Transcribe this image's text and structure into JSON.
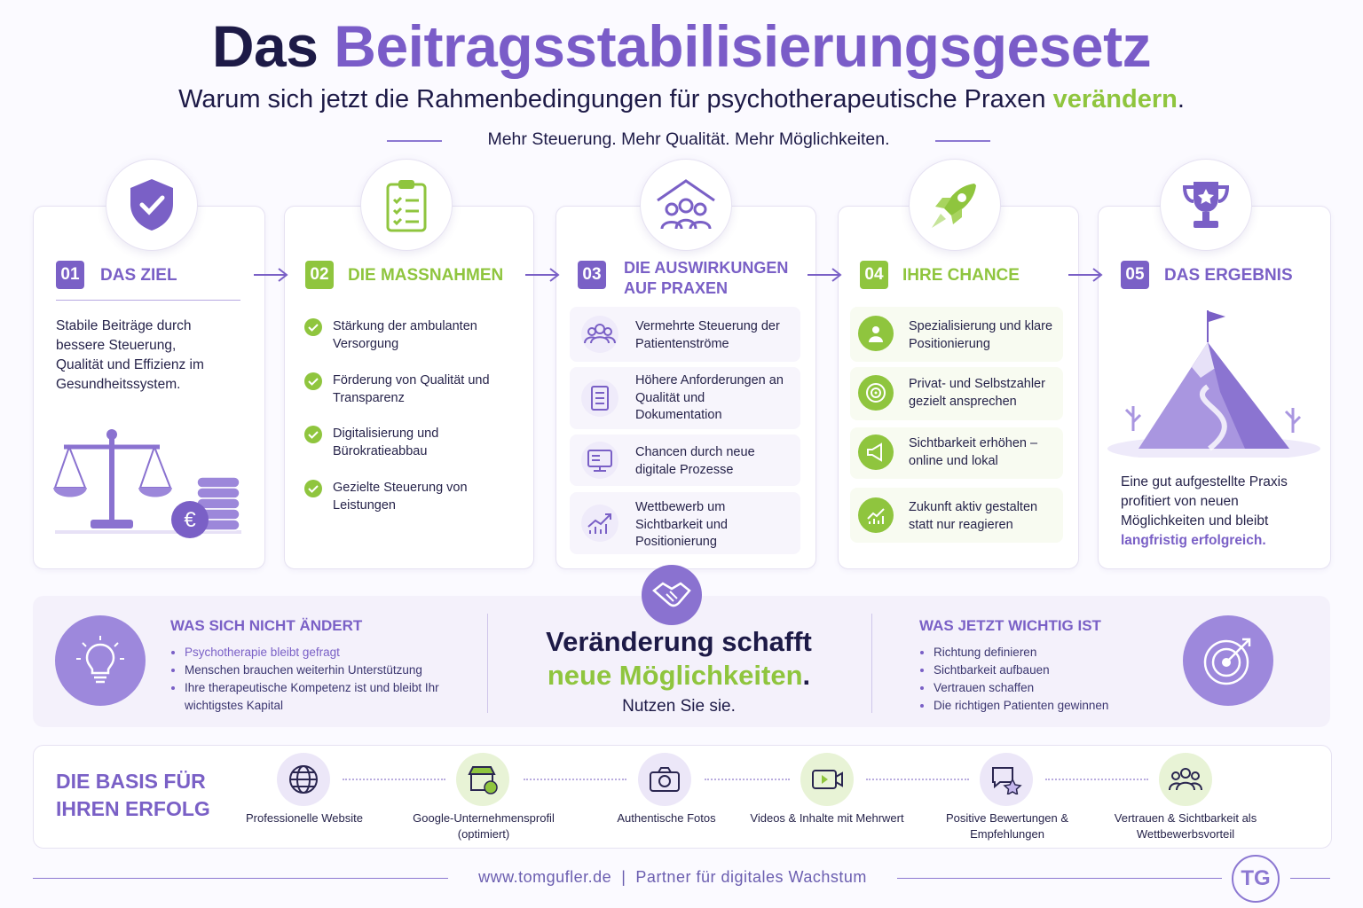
{
  "header": {
    "title_dark": "Das",
    "title_accent": "Beitragsstabilisierungsgesetz",
    "subtitle": "Warum sich jetzt die Rahmenbedingungen für psychotherapeutische Praxen",
    "subtitle_highlight": "verändern",
    "subtitle_end": ".",
    "tagline": "Mehr Steuerung. Mehr Qualität. Mehr Möglichkeiten."
  },
  "steps": [
    {
      "number": "01",
      "title": "DAS ZIEL",
      "text": "Stabile Beiträge durch bessere Steuerung, Qualität und Effizienz im Gesundheitssystem."
    },
    {
      "number": "02",
      "title": "DIE MASSNAHMEN",
      "items": [
        "Stärkung der ambulanten Versorgung",
        "Förderung von Qualität und Transparenz",
        "Digitalisierung und Bürokratieabbau",
        "Gezielte Steuerung von Leistungen"
      ]
    },
    {
      "number": "03",
      "title": "DIE AUSWIRKUNGEN AUF PRAXEN",
      "items": [
        "Vermehrte Steuerung der Patientenströme",
        "Höhere Anforderungen an Qualität und Dokumentation",
        "Chancen durch neue digitale Prozesse",
        "Wettbewerb um Sichtbarkeit und Positionierung"
      ]
    },
    {
      "number": "04",
      "title": "IHRE CHANCE",
      "items": [
        "Spezialisierung und klare Positionierung",
        "Privat- und Selbstzahler gezielt ansprechen",
        "Sichtbarkeit erhöhen – online und lokal",
        "Zukunft aktiv gestalten statt nur reagieren"
      ]
    },
    {
      "number": "05",
      "title": "DAS ERGEBNIS",
      "text": "Eine gut aufgestellte Praxis profitiert von neuen Möglichkeiten und bleibt",
      "highlight": "langfristig erfolgreich."
    }
  ],
  "middle": {
    "left": {
      "title": "WAS SICH NICHT ÄNDERT",
      "items": [
        "Psychotherapie bleibt gefragt",
        "Menschen brauchen weiterhin Unterstützung",
        "Ihre therapeutische Kompetenz ist und bleibt Ihr wichtigstes Kapital"
      ]
    },
    "center": {
      "line1": "Veränderung schafft",
      "line2": "neue Möglichkeiten",
      "line2_end": ".",
      "line3": "Nutzen Sie sie."
    },
    "right": {
      "title": "WAS JETZT WICHTIG IST",
      "items": [
        "Richtung definieren",
        "Sichtbarkeit aufbauen",
        "Vertrauen schaffen",
        "Die richtigen Patienten gewinnen"
      ]
    }
  },
  "basis": {
    "title": "DIE BASIS FÜR IHREN ERFOLG",
    "items": [
      "Professionelle Website",
      "Google-Unternehmensprofil (optimiert)",
      "Authentische Fotos",
      "Videos & Inhalte mit Mehrwert",
      "Positive Bewertungen & Empfehlungen",
      "Vertrauen & Sichtbarkeit als Wettbewerbsvorteil"
    ]
  },
  "footer": {
    "url": "www.tomgufler.de",
    "separator": "|",
    "claim": "Partner für digitales Wachstum",
    "logo": "TG"
  }
}
